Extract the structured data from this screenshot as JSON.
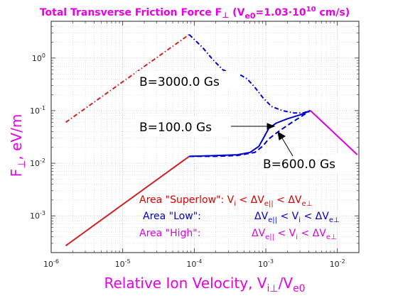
{
  "chart_data": {
    "type": "line",
    "title": "Total Transverse Friction Force F",
    "title_perp": "⊥",
    "title_rest": " (V",
    "title_sub": "e0",
    "title_eq": "=1.03·10",
    "title_exp": "10",
    "title_unit": " cm/s)",
    "xlabel_main": "Relative Ion Velocity, V",
    "xlabel_sub": "i⊥",
    "xlabel_div": "/V",
    "xlabel_sub2": "e0",
    "ylabel_main": "F",
    "ylabel_sub": "⊥",
    "ylabel_rest": ", eV/m",
    "x_scale": "log",
    "y_scale": "log",
    "xlim": [
      1e-06,
      0.02
    ],
    "ylim": [
      0.0002,
      5
    ],
    "grid": true,
    "x_ticks": [
      {
        "v": 1e-06,
        "base": "10",
        "exp": "-6"
      },
      {
        "v": 1e-05,
        "base": "10",
        "exp": "-5"
      },
      {
        "v": 0.0001,
        "base": "10",
        "exp": "-4"
      },
      {
        "v": 0.001,
        "base": "10",
        "exp": "-3"
      },
      {
        "v": 0.01,
        "base": "10",
        "exp": "-2"
      }
    ],
    "y_ticks": [
      {
        "v": 0.001,
        "base": "10",
        "exp": "-3"
      },
      {
        "v": 0.01,
        "base": "10",
        "exp": "-2"
      },
      {
        "v": 0.1,
        "base": "10",
        "exp": "-1"
      },
      {
        "v": 1,
        "base": "10",
        "exp": "0"
      }
    ],
    "series": [
      {
        "name": "B=3000.0 Gs",
        "color": "#cc2222",
        "dash": "6,3,1.5,3",
        "points": [
          [
            1.6e-06,
            0.06
          ],
          [
            8.5e-05,
            2.8
          ]
        ]
      },
      {
        "name": "B=3000.0 Gs",
        "color": "#0000cc",
        "dash": "6,3,1.5,3",
        "points": [
          [
            8.5e-05,
            2.8
          ],
          [
            0.00013,
            1.6
          ],
          [
            0.00018,
            0.95
          ],
          [
            0.00025,
            0.6
          ],
          [
            0.00035,
            0.5
          ],
          [
            0.00045,
            0.47
          ],
          [
            0.00055,
            0.4
          ],
          [
            0.0007,
            0.28
          ],
          [
            0.0009,
            0.18
          ],
          [
            0.0012,
            0.12
          ],
          [
            0.0017,
            0.1
          ],
          [
            0.0025,
            0.09
          ],
          [
            0.0033,
            0.09
          ],
          [
            0.0042,
            0.1
          ]
        ]
      },
      {
        "name": "B=100.0 Gs",
        "color": "#cc2222",
        "dash": "",
        "points": [
          [
            1.6e-06,
            0.00027
          ],
          [
            8.5e-05,
            0.0135
          ]
        ]
      },
      {
        "name": "B=100.0 Gs",
        "color": "#0000cc",
        "dash": "",
        "points": [
          [
            8.5e-05,
            0.0135
          ],
          [
            0.0002,
            0.014
          ],
          [
            0.0004,
            0.0145
          ],
          [
            0.0006,
            0.016
          ],
          [
            0.0008,
            0.021
          ],
          [
            0.00095,
            0.032
          ],
          [
            0.0011,
            0.046
          ],
          [
            0.0014,
            0.058
          ],
          [
            0.002,
            0.07
          ],
          [
            0.003,
            0.083
          ],
          [
            0.0042,
            0.1
          ]
        ]
      },
      {
        "name": "B=600.0 Gs",
        "color": "#0000cc",
        "dash": "7,4",
        "points": [
          [
            8.5e-05,
            0.0135
          ],
          [
            0.0002,
            0.0135
          ],
          [
            0.0004,
            0.014
          ],
          [
            0.0007,
            0.016
          ],
          [
            0.0009,
            0.021
          ],
          [
            0.0011,
            0.029
          ],
          [
            0.0015,
            0.04
          ],
          [
            0.0022,
            0.057
          ],
          [
            0.003,
            0.075
          ],
          [
            0.0042,
            0.1
          ]
        ]
      },
      {
        "name": "Area High",
        "color": "#dd00dd",
        "dash": "",
        "points": [
          [
            0.0042,
            0.1
          ],
          [
            0.019,
            0.0145
          ]
        ]
      }
    ],
    "annotations": [
      {
        "text": "B=3000.0 Gs"
      },
      {
        "text": "B=100.0 Gs"
      },
      {
        "text": "B=600.0 Gs"
      }
    ],
    "areas": [
      {
        "color": "#dd0000",
        "label": "Area \"Superlow\": V",
        "s1": "i",
        "m1": " < ΔV",
        "s2": "e||",
        "m2": " < ΔV",
        "s3": "e⊥"
      },
      {
        "color": "#0000cc",
        "label": "Area \"Low\":",
        "pre": "ΔV",
        "s1": "e||",
        "m1": " < V",
        "s2": "i",
        "m2": " < ΔV",
        "s3": "e⊥"
      },
      {
        "color": "#dd00dd",
        "label": "Area \"High\":",
        "pre": "ΔV",
        "s1": "e||",
        "m1": " < V",
        "s2": "i",
        "m2": " < ΔV",
        "s3": "e⊥"
      }
    ],
    "colors": {
      "title": "#e600e6",
      "axis_label": "#e600e6"
    }
  }
}
